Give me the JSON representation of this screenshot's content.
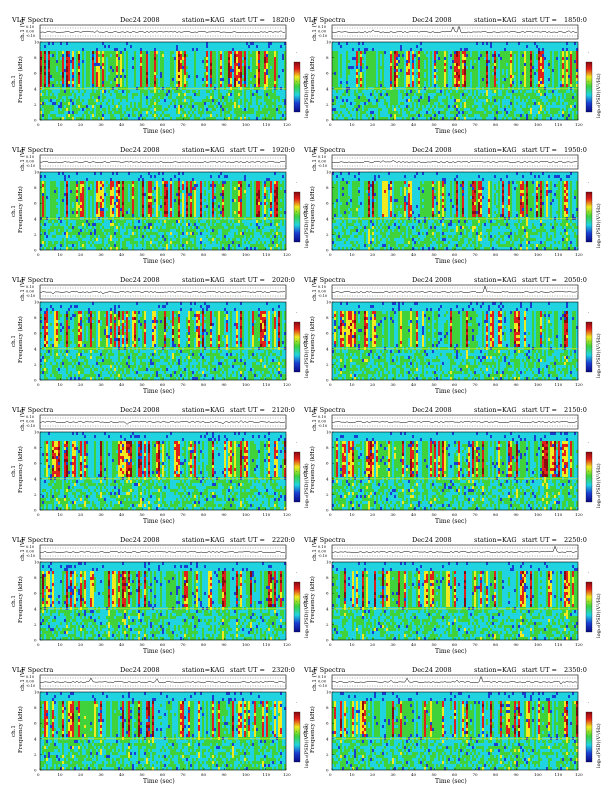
{
  "common": {
    "title": "VLF Spectra",
    "date": "Dec24 2008",
    "station": "station=KAG",
    "start_prefix": "start  UT =",
    "top_ylabel": "ch.1 (V)",
    "top_yticks": [
      "0.10",
      "0.00",
      "-0.10"
    ],
    "spec_ylabel_line1": "ch.1",
    "spec_ylabel_line2": "Frequency (kHz)",
    "xlabel": "Time (sec)",
    "colorbar_label": "log₁₀(PSD)(V²/Hz)",
    "colorbar_ticks": [
      "-",
      "-",
      "-"
    ],
    "colors": {
      "blue": "#1a3fd1",
      "cyan": "#1fd4e0",
      "green": "#3fd23a",
      "yellow": "#f2ea1f",
      "red": "#e0201a",
      "darkred": "#8a0a10"
    }
  },
  "chart_data": [
    {
      "type": "heatmap",
      "start_ut": "1820:0",
      "x_ticks": [
        0,
        10,
        20,
        30,
        40,
        50,
        60,
        70,
        80,
        90,
        100,
        110,
        120
      ],
      "y_ticks": [
        0,
        2,
        4,
        6,
        8,
        10
      ],
      "xlim": [
        0,
        120
      ],
      "ylim": [
        0,
        10
      ],
      "top_ylim": [
        -0.1,
        0.1
      ]
    },
    {
      "type": "heatmap",
      "start_ut": "1850:0",
      "x_ticks": [
        0,
        10,
        20,
        30,
        40,
        50,
        60,
        70,
        80,
        90,
        100,
        110,
        120
      ],
      "y_ticks": [
        0,
        2,
        4,
        6,
        8,
        10
      ],
      "xlim": [
        0,
        120
      ],
      "ylim": [
        0,
        10
      ],
      "top_ylim": [
        -0.1,
        0.1
      ]
    },
    {
      "type": "heatmap",
      "start_ut": "1920:0",
      "x_ticks": [
        0,
        10,
        20,
        30,
        40,
        50,
        60,
        70,
        80,
        90,
        100,
        110,
        120
      ],
      "y_ticks": [
        0,
        2,
        4,
        6,
        8,
        10
      ],
      "xlim": [
        0,
        120
      ],
      "ylim": [
        0,
        10
      ],
      "top_ylim": [
        -0.1,
        0.1
      ]
    },
    {
      "type": "heatmap",
      "start_ut": "1950:0",
      "x_ticks": [
        0,
        10,
        20,
        30,
        40,
        50,
        60,
        70,
        80,
        90,
        100,
        110,
        120
      ],
      "y_ticks": [
        0,
        2,
        4,
        6,
        8,
        10
      ],
      "xlim": [
        0,
        120
      ],
      "ylim": [
        0,
        10
      ],
      "top_ylim": [
        -0.1,
        0.1
      ]
    },
    {
      "type": "heatmap",
      "start_ut": "2020:0",
      "x_ticks": [
        0,
        10,
        20,
        30,
        40,
        50,
        60,
        70,
        80,
        90,
        100,
        110,
        120
      ],
      "y_ticks": [
        0,
        2,
        4,
        6,
        8,
        10
      ],
      "xlim": [
        0,
        120
      ],
      "ylim": [
        0,
        10
      ],
      "top_ylim": [
        -0.1,
        0.1
      ]
    },
    {
      "type": "heatmap",
      "start_ut": "2050:0",
      "x_ticks": [
        0,
        10,
        20,
        30,
        40,
        50,
        60,
        70,
        80,
        90,
        100,
        110,
        120
      ],
      "y_ticks": [
        0,
        2,
        4,
        6,
        8,
        10
      ],
      "xlim": [
        0,
        120
      ],
      "ylim": [
        0,
        10
      ],
      "top_ylim": [
        -0.1,
        0.1
      ]
    },
    {
      "type": "heatmap",
      "start_ut": "2120:0",
      "x_ticks": [
        0,
        10,
        20,
        30,
        40,
        50,
        60,
        70,
        80,
        90,
        100,
        110,
        120
      ],
      "y_ticks": [
        0,
        2,
        4,
        6,
        8,
        10
      ],
      "xlim": [
        0,
        120
      ],
      "ylim": [
        0,
        10
      ],
      "top_ylim": [
        -0.1,
        0.1
      ]
    },
    {
      "type": "heatmap",
      "start_ut": "2150:0",
      "x_ticks": [
        0,
        10,
        20,
        30,
        40,
        50,
        60,
        70,
        80,
        90,
        100,
        110,
        120
      ],
      "y_ticks": [
        0,
        2,
        4,
        6,
        8,
        10
      ],
      "xlim": [
        0,
        120
      ],
      "ylim": [
        0,
        10
      ],
      "top_ylim": [
        -0.1,
        0.1
      ]
    },
    {
      "type": "heatmap",
      "start_ut": "2220:0",
      "x_ticks": [
        0,
        10,
        20,
        30,
        40,
        50,
        60,
        70,
        80,
        90,
        100,
        110,
        120
      ],
      "y_ticks": [
        0,
        2,
        4,
        6,
        8,
        10
      ],
      "xlim": [
        0,
        120
      ],
      "ylim": [
        0,
        10
      ],
      "top_ylim": [
        -0.1,
        0.1
      ]
    },
    {
      "type": "heatmap",
      "start_ut": "2250:0",
      "x_ticks": [
        0,
        10,
        20,
        30,
        40,
        50,
        60,
        70,
        80,
        90,
        100,
        110,
        120
      ],
      "y_ticks": [
        0,
        2,
        4,
        6,
        8,
        10
      ],
      "xlim": [
        0,
        120
      ],
      "ylim": [
        0,
        10
      ],
      "top_ylim": [
        -0.1,
        0.1
      ]
    },
    {
      "type": "heatmap",
      "start_ut": "2320:0",
      "x_ticks": [
        0,
        10,
        20,
        30,
        40,
        50,
        60,
        70,
        80,
        90,
        100,
        110,
        120
      ],
      "y_ticks": [
        0,
        2,
        4,
        6,
        8,
        10
      ],
      "xlim": [
        0,
        120
      ],
      "ylim": [
        0,
        10
      ],
      "top_ylim": [
        -0.1,
        0.1
      ]
    },
    {
      "type": "heatmap",
      "start_ut": "2350:0",
      "x_ticks": [
        0,
        10,
        20,
        30,
        40,
        50,
        60,
        70,
        80,
        90,
        100,
        110,
        120
      ],
      "y_ticks": [
        0,
        2,
        4,
        6,
        8,
        10
      ],
      "xlim": [
        0,
        120
      ],
      "ylim": [
        0,
        10
      ],
      "top_ylim": [
        -0.1,
        0.1
      ]
    }
  ]
}
